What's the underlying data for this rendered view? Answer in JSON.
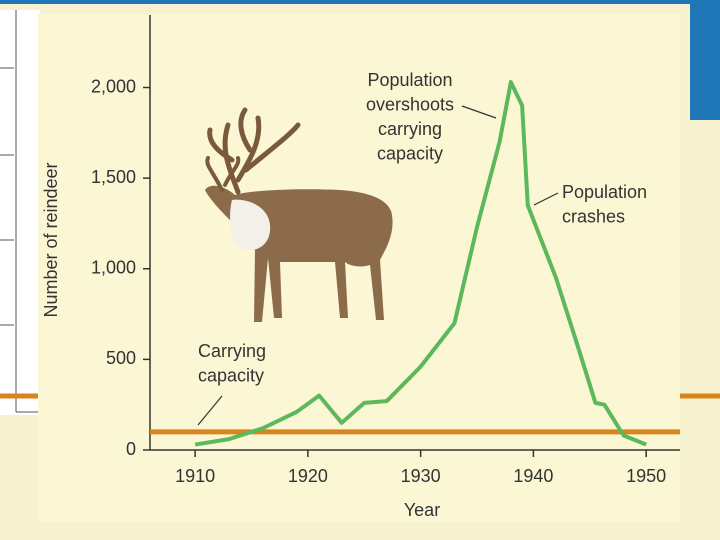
{
  "chart_data": {
    "type": "line",
    "xlabel": "Year",
    "ylabel": "Number of reindeer",
    "xlim": [
      1906,
      1953
    ],
    "xticks": [
      1910,
      1920,
      1930,
      1940,
      1950
    ],
    "ylim": [
      0,
      2400
    ],
    "yticks": [
      0,
      500,
      {
        "value": 1000,
        "label": "1,000"
      },
      {
        "value": 1500,
        "label": "1,500"
      },
      {
        "value": 2000,
        "label": "2,000"
      }
    ],
    "series": [
      {
        "name": "Population",
        "color": "#5cb85c",
        "x": [
          1910,
          1913,
          1916,
          1919,
          1921,
          1923,
          1925,
          1927,
          1930,
          1933,
          1935,
          1937,
          1938,
          1939,
          1939.5,
          1942,
          1944,
          1945.5,
          1946.3,
          1948,
          1950
        ],
        "values": [
          30,
          60,
          120,
          210,
          300,
          150,
          260,
          270,
          460,
          700,
          1230,
          1700,
          2030,
          1900,
          1350,
          950,
          560,
          260,
          250,
          80,
          30
        ]
      },
      {
        "name": "Carrying capacity",
        "color": "#d9851e",
        "x": [
          1906,
          1953
        ],
        "values": [
          100,
          100
        ]
      }
    ],
    "annotations": [
      {
        "lines": [
          "Population",
          "overshoots",
          "carrying",
          "capacity"
        ]
      },
      {
        "lines": [
          "Population",
          "crashes"
        ]
      },
      {
        "lines": [
          "Carrying",
          "capacity"
        ]
      }
    ]
  }
}
